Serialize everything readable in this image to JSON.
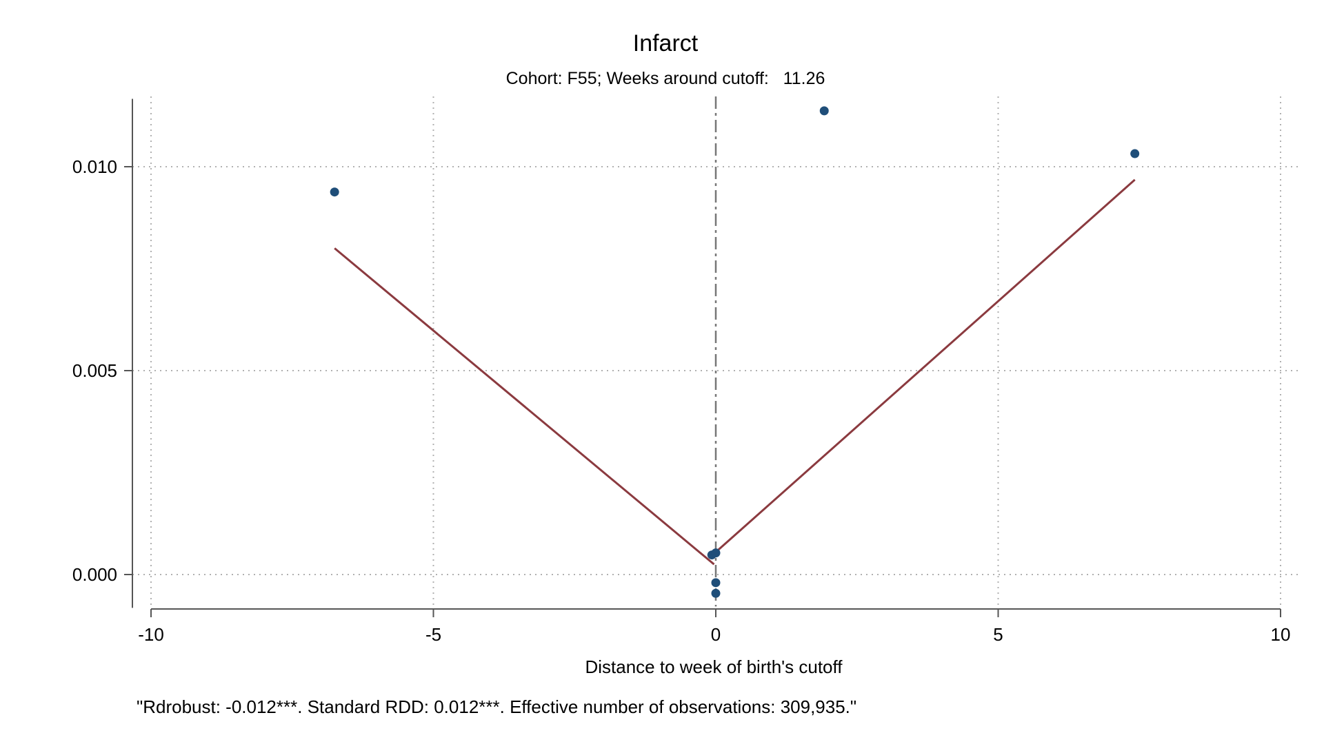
{
  "chart_data": {
    "type": "scatter",
    "title": "Infarct",
    "subtitle": "Cohort: F55; Weeks around cutoff:   11.26",
    "xlabel": "Distance to week of birth's cutoff",
    "ylabel": "",
    "note": "\"Rdrobust: -0.012***. Standard RDD: 0.012***. Effective number of observations: 309,935.\"",
    "xlim": [
      -10,
      10
    ],
    "ylim": [
      -0.00085,
      0.0118
    ],
    "xticks": [
      -10,
      -5,
      0,
      5,
      10
    ],
    "xtick_labels": [
      "-10",
      "-5",
      "0",
      "5",
      "10"
    ],
    "yticks": [
      0,
      0.005,
      0.01
    ],
    "ytick_labels": [
      "0.000",
      "0.005",
      "0.010"
    ],
    "grid": true,
    "cutoff_x": 0,
    "points": [
      {
        "x": -6.75,
        "y": 0.00938
      },
      {
        "x": -0.07,
        "y": 0.00048
      },
      {
        "x": 0.0,
        "y": 0.00053
      },
      {
        "x": 0.0,
        "y": -0.0002
      },
      {
        "x": 0.0,
        "y": -0.00046
      },
      {
        "x": 1.92,
        "y": 0.01137
      },
      {
        "x": 7.42,
        "y": 0.01032
      }
    ],
    "fit_lines": [
      {
        "x": [
          -6.75,
          -0.03
        ],
        "y": [
          0.008,
          0.00025
        ]
      },
      {
        "x": [
          0.0,
          7.42
        ],
        "y": [
          0.00055,
          0.00968
        ]
      }
    ],
    "colors": {
      "points": "#1f4e79",
      "fit": "#8b3a3f",
      "cutoff": "#777777",
      "grid": "#b0b0b0",
      "axis": "#555555"
    }
  }
}
